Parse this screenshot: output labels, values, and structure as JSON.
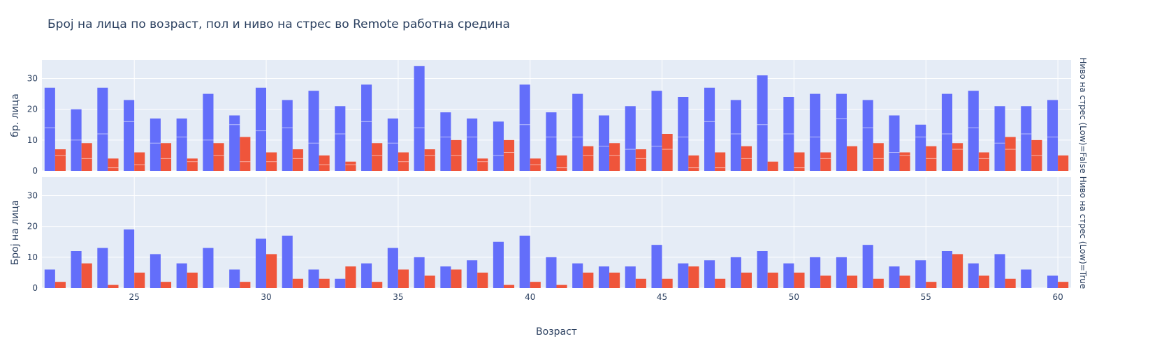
{
  "chart_data": {
    "type": "bar",
    "barmode": "group",
    "title": "Број на лица по возраст, пол и ниво на стрес во Remote работна средина",
    "xlabel": "Возраст",
    "x_ticks": [
      25,
      30,
      35,
      40,
      45,
      50,
      55,
      60
    ],
    "xlim": [
      21.5,
      60.5
    ],
    "ylim": [
      0,
      36
    ],
    "y_ticks": [
      0,
      10,
      20,
      30
    ],
    "colors": [
      "#636efa",
      "#ef553b"
    ],
    "facets": [
      {
        "label": "Ниво на стрес (Low)=False",
        "ylabel": "бр. лица",
        "ages": [
          22,
          23,
          24,
          25,
          26,
          27,
          28,
          29,
          30,
          31,
          32,
          33,
          34,
          35,
          36,
          37,
          38,
          39,
          40,
          41,
          42,
          43,
          44,
          45,
          46,
          47,
          48,
          49,
          50,
          51,
          52,
          53,
          54,
          55,
          56,
          57,
          58,
          59,
          60
        ],
        "series": [
          {
            "values": [
              27,
              20,
              27,
              23,
              17,
              17,
              25,
              18,
              27,
              23,
              26,
              21,
              28,
              17,
              34,
              19,
              17,
              16,
              28,
              19,
              25,
              18,
              21,
              26,
              24,
              27,
              23,
              31,
              24,
              25,
              25,
              23,
              18,
              15,
              25,
              26,
              21,
              21,
              23
            ],
            "inner_lines": [
              14,
              10,
              12,
              16,
              9,
              11,
              10,
              15,
              13,
              14,
              9,
              12,
              16,
              9,
              14,
              11,
              11,
              5,
              15,
              11,
              11,
              8,
              7,
              8,
              11,
              16,
              12,
              15,
              12,
              11,
              17,
              14,
              6,
              11,
              12,
              14,
              9,
              12,
              11
            ]
          },
          {
            "values": [
              7,
              9,
              4,
              6,
              9,
              4,
              9,
              11,
              6,
              7,
              5,
              3,
              9,
              6,
              7,
              10,
              4,
              10,
              4,
              5,
              8,
              9,
              7,
              12,
              5,
              6,
              8,
              3,
              6,
              6,
              8,
              9,
              6,
              8,
              9,
              6,
              11,
              10,
              5
            ],
            "inner_lines": [
              5,
              4,
              1,
              2,
              4,
              3,
              5,
              3,
              3,
              4,
              2,
              2,
              5,
              3,
              5,
              5,
              3,
              6,
              2,
              1,
              5,
              5,
              4,
              7,
              1,
              1,
              4,
              0,
              1,
              4,
              0,
              4,
              5,
              4,
              7,
              4,
              7,
              5,
              0
            ]
          }
        ]
      },
      {
        "label": "Ниво на стрес (Low)=True",
        "ylabel": "Број на лица",
        "ages": [
          22,
          23,
          24,
          25,
          26,
          27,
          28,
          29,
          30,
          31,
          32,
          33,
          34,
          35,
          36,
          37,
          38,
          39,
          40,
          41,
          42,
          43,
          44,
          45,
          46,
          47,
          48,
          49,
          50,
          51,
          52,
          53,
          54,
          55,
          56,
          57,
          58,
          59,
          60
        ],
        "series": [
          {
            "values": [
              6,
              12,
              13,
              19,
              11,
              8,
              13,
              6,
              16,
              17,
              6,
              3,
              8,
              13,
              10,
              7,
              9,
              15,
              17,
              10,
              8,
              7,
              7,
              14,
              8,
              9,
              10,
              12,
              8,
              10,
              10,
              14,
              7,
              9,
              12,
              8,
              11,
              6,
              4
            ],
            "inner_lines": []
          },
          {
            "values": [
              2,
              8,
              1,
              5,
              2,
              5,
              0,
              2,
              11,
              3,
              3,
              7,
              2,
              6,
              4,
              6,
              5,
              1,
              2,
              1,
              5,
              5,
              3,
              3,
              7,
              3,
              5,
              5,
              5,
              4,
              4,
              3,
              4,
              2,
              11,
              4,
              3,
              0,
              2
            ],
            "inner_lines": []
          }
        ]
      }
    ]
  }
}
